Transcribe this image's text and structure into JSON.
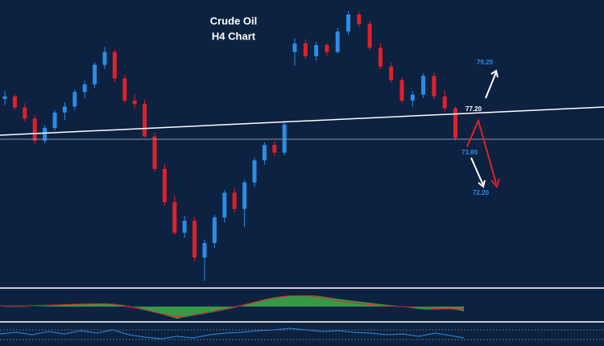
{
  "chart_data": {
    "type": "candlestick",
    "title": "Crude Oil",
    "subtitle": "H4 Chart",
    "ylim": [
      56.6,
      90.1
    ],
    "candles": [
      [
        78.5,
        79.4,
        77.8,
        78.8
      ],
      [
        78.8,
        79.0,
        77.2,
        77.5
      ],
      [
        77.5,
        78.0,
        75.9,
        76.2
      ],
      [
        76.2,
        76.6,
        73.2,
        73.6
      ],
      [
        73.6,
        75.4,
        73.3,
        75.1
      ],
      [
        75.1,
        77.2,
        74.8,
        76.9
      ],
      [
        76.9,
        78.1,
        76.0,
        77.6
      ],
      [
        77.6,
        79.6,
        77.2,
        79.3
      ],
      [
        79.3,
        80.6,
        78.6,
        80.2
      ],
      [
        80.2,
        82.8,
        79.8,
        82.5
      ],
      [
        82.5,
        84.6,
        82.0,
        84.0
      ],
      [
        84.0,
        84.3,
        80.5,
        80.9
      ],
      [
        80.9,
        81.3,
        78.0,
        78.3
      ],
      [
        78.3,
        79.0,
        77.3,
        77.9
      ],
      [
        77.9,
        78.4,
        74.0,
        74.1
      ],
      [
        74.1,
        74.5,
        70.0,
        70.3
      ],
      [
        70.3,
        70.8,
        66.0,
        66.4
      ],
      [
        66.4,
        67.2,
        62.5,
        62.8
      ],
      [
        62.8,
        64.8,
        62.2,
        64.2
      ],
      [
        64.2,
        64.6,
        59.5,
        59.9
      ],
      [
        59.9,
        62.0,
        57.2,
        61.6
      ],
      [
        61.6,
        64.9,
        61.0,
        64.6
      ],
      [
        64.6,
        67.8,
        64.0,
        67.5
      ],
      [
        67.5,
        68.0,
        65.2,
        65.6
      ],
      [
        65.6,
        69.0,
        63.5,
        68.7
      ],
      [
        68.7,
        71.6,
        68.2,
        71.3
      ],
      [
        71.3,
        73.4,
        70.8,
        73.1
      ],
      [
        73.1,
        73.5,
        71.8,
        72.2
      ],
      [
        72.2,
        75.8,
        71.9,
        75.5
      ],
      [
        84.0,
        85.6,
        82.4,
        85.0
      ],
      [
        85.0,
        85.5,
        83.2,
        83.5
      ],
      [
        83.5,
        85.2,
        83.0,
        84.8
      ],
      [
        84.8,
        85.0,
        83.6,
        84.0
      ],
      [
        84.0,
        86.8,
        83.8,
        86.4
      ],
      [
        86.4,
        88.8,
        86.0,
        88.4
      ],
      [
        88.4,
        88.7,
        86.9,
        87.3
      ],
      [
        87.3,
        87.6,
        84.2,
        84.5
      ],
      [
        84.5,
        85.0,
        82.0,
        82.3
      ],
      [
        82.3,
        82.8,
        80.4,
        80.7
      ],
      [
        80.7,
        81.0,
        78.0,
        78.3
      ],
      [
        78.3,
        79.4,
        77.6,
        79.0
      ],
      [
        79.0,
        81.5,
        78.6,
        81.2
      ],
      [
        81.2,
        81.6,
        78.4,
        78.8
      ],
      [
        78.8,
        79.5,
        77.0,
        77.4
      ],
      [
        77.4,
        77.6,
        73.6,
        73.9
      ]
    ],
    "up_color": "#2a8de6",
    "down_color": "#e0202a",
    "annotations": [
      "79.20",
      "77.20",
      "73.80",
      "72.20"
    ]
  }
}
